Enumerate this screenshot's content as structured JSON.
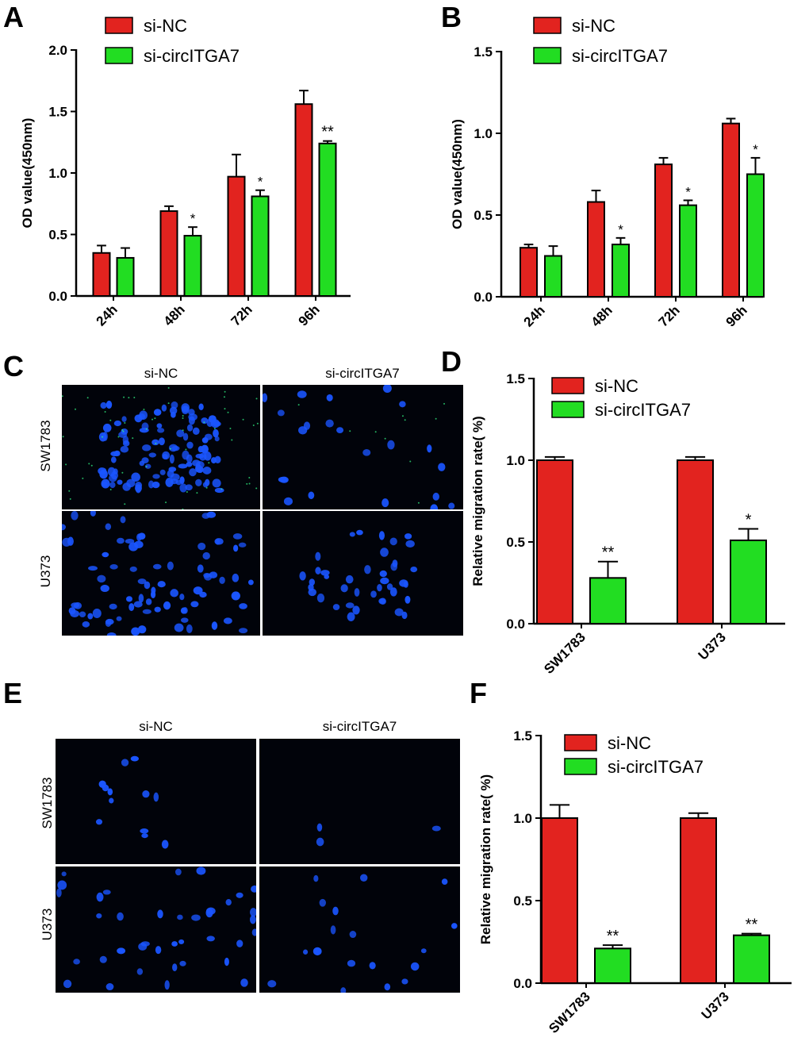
{
  "panels": {
    "A": "A",
    "B": "B",
    "C": "C",
    "D": "D",
    "E": "E",
    "F": "F"
  },
  "colors": {
    "si_nc": "#e2231f",
    "si_circ": "#22dd22",
    "nucleus": "#1a55ff",
    "green_dot": "#33ff88"
  },
  "legend": {
    "si_nc": "si-NC",
    "si_circ": "si-circITGA7"
  },
  "micrographs": {
    "C": {
      "col1": "si-NC",
      "col2": "si-circITGA7",
      "row1": "SW1783",
      "row2": "U373"
    },
    "E": {
      "col1": "si-NC",
      "col2": "si-circITGA7",
      "row1": "SW1783",
      "row2": "U373"
    }
  },
  "chart_data": [
    {
      "panel": "A",
      "type": "bar",
      "ylabel": "OD value(450nm)",
      "ylim": [
        0,
        2.0
      ],
      "yticks": [
        "0.0",
        "0.5",
        "1.0",
        "1.5",
        "2.0"
      ],
      "categories": [
        "24h",
        "48h",
        "72h",
        "96h"
      ],
      "series": [
        {
          "name": "si-NC",
          "values": [
            0.35,
            0.69,
            0.97,
            1.56
          ],
          "errors": [
            0.06,
            0.04,
            0.18,
            0.11
          ],
          "sig": [
            "",
            "",
            "",
            ""
          ]
        },
        {
          "name": "si-circITGA7",
          "values": [
            0.31,
            0.49,
            0.81,
            1.24
          ],
          "errors": [
            0.08,
            0.07,
            0.05,
            0.02
          ],
          "sig": [
            "",
            "*",
            "*",
            "**"
          ]
        }
      ]
    },
    {
      "panel": "B",
      "type": "bar",
      "ylabel": "OD value(450nm)",
      "ylim": [
        0,
        1.5
      ],
      "yticks": [
        "0.0",
        "0.5",
        "1.0",
        "1.5"
      ],
      "categories": [
        "24h",
        "48h",
        "72h",
        "96h"
      ],
      "series": [
        {
          "name": "si-NC",
          "values": [
            0.3,
            0.58,
            0.81,
            1.06
          ],
          "errors": [
            0.02,
            0.07,
            0.04,
            0.03
          ],
          "sig": [
            "",
            "",
            "",
            ""
          ]
        },
        {
          "name": "si-circITGA7",
          "values": [
            0.25,
            0.32,
            0.56,
            0.75
          ],
          "errors": [
            0.06,
            0.04,
            0.03,
            0.1
          ],
          "sig": [
            "",
            "*",
            "*",
            "*"
          ]
        }
      ]
    },
    {
      "panel": "D",
      "type": "bar",
      "ylabel": "Relative migration rate( %)",
      "ylim": [
        0,
        1.5
      ],
      "yticks": [
        "0.0",
        "0.5",
        "1.0",
        "1.5"
      ],
      "categories": [
        "SW1783",
        "U373"
      ],
      "series": [
        {
          "name": "si-NC",
          "values": [
            1.0,
            1.0
          ],
          "errors": [
            0.02,
            0.02
          ],
          "sig": [
            "",
            ""
          ]
        },
        {
          "name": "si-circITGA7",
          "values": [
            0.28,
            0.51
          ],
          "errors": [
            0.1,
            0.07
          ],
          "sig": [
            "**",
            "*"
          ]
        }
      ]
    },
    {
      "panel": "F",
      "type": "bar",
      "ylabel": "Relative migration rate( %)",
      "ylim": [
        0,
        1.5
      ],
      "yticks": [
        "0.0",
        "0.5",
        "1.0",
        "1.5"
      ],
      "categories": [
        "SW1783",
        "U373"
      ],
      "series": [
        {
          "name": "si-NC",
          "values": [
            1.0,
            1.0
          ],
          "errors": [
            0.08,
            0.03
          ],
          "sig": [
            "",
            ""
          ]
        },
        {
          "name": "si-circITGA7",
          "values": [
            0.21,
            0.29
          ],
          "errors": [
            0.02,
            0.01
          ],
          "sig": [
            "**",
            "**"
          ]
        }
      ]
    }
  ]
}
